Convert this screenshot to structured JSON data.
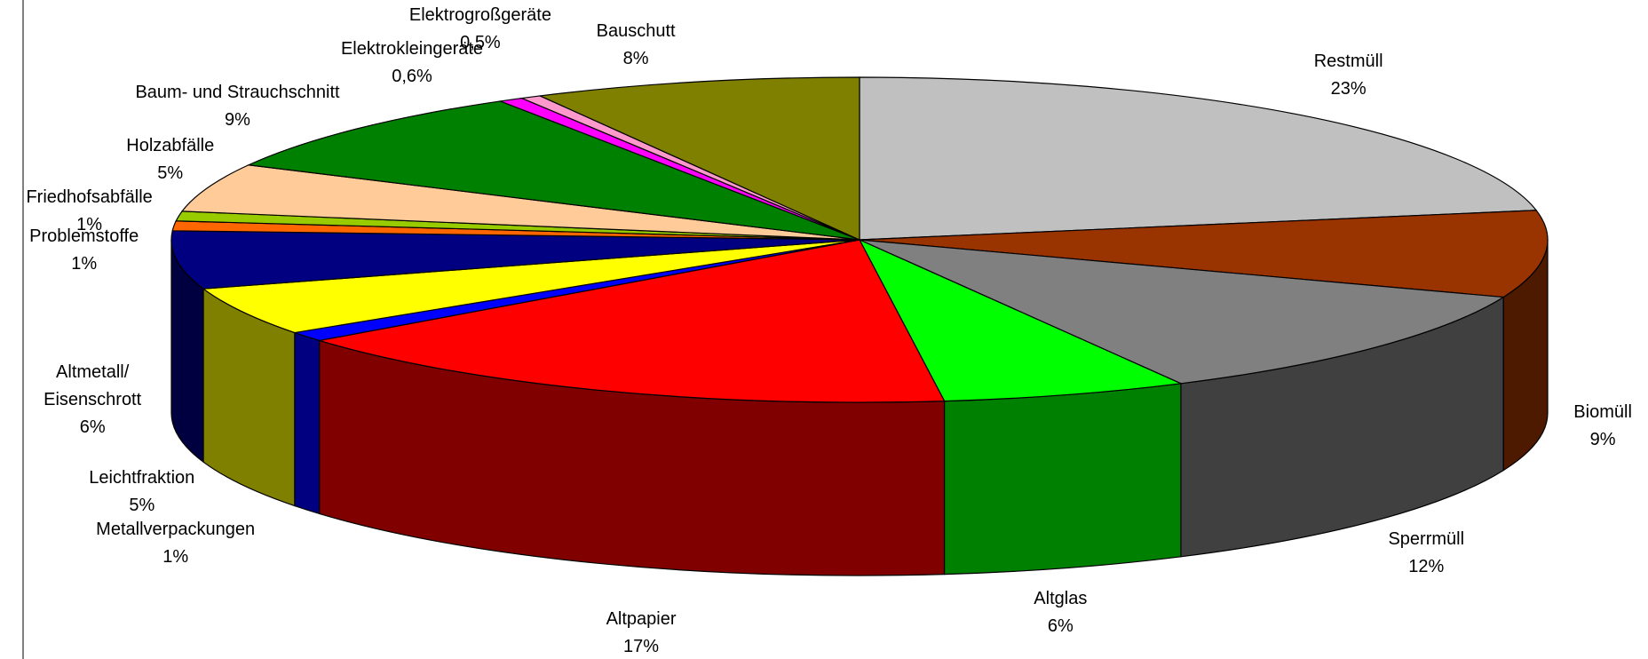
{
  "chart_data": {
    "type": "pie3d",
    "categories": [
      "Restmüll",
      "Biomüll",
      "Sperrmüll",
      "Altglas",
      "Altpapier",
      "Metallverpackungen",
      "Leichtfraktion",
      "Altmetall/ Eisenschrott",
      "Problemstoffe",
      "Friedhofsabfälle",
      "Holzabfälle",
      "Baum- und Strauchschnitt",
      "Elektrokleingeräte",
      "Elektrogroßgeräte",
      "Bauschutt"
    ],
    "values": [
      23,
      9,
      12,
      6,
      17,
      1,
      5,
      6,
      1,
      1,
      5,
      9,
      0.6,
      0.5,
      8
    ],
    "value_labels": [
      "23%",
      "9%",
      "12%",
      "6%",
      "17%",
      "1%",
      "5%",
      "6%",
      "1%",
      "1%",
      "5%",
      "9%",
      "0,6%",
      "0,5%",
      "8%"
    ],
    "colors": [
      "#c0c0c0",
      "#993300",
      "#808080",
      "#00ff00",
      "#ff0000",
      "#0000ff",
      "#ffff00",
      "#000080",
      "#ff6600",
      "#99cc00",
      "#ffcc99",
      "#008000",
      "#ff00ff",
      "#ff99cc",
      "#808000"
    ]
  }
}
